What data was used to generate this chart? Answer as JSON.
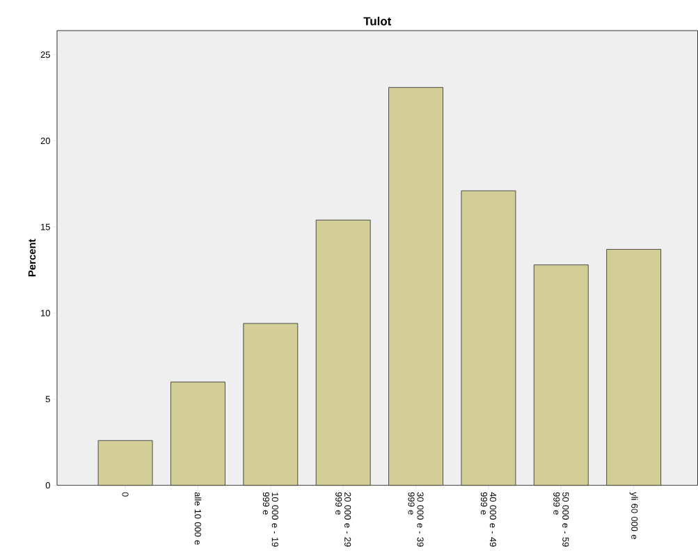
{
  "chart_data": {
    "type": "bar",
    "title": "Tulot",
    "ylabel": "Percent",
    "categories": [
      "0",
      "alle 10 000 e",
      "10 000 e - 19 999 e",
      "20 000 e - 29 999 e",
      "30 000 e - 39 999 e",
      "40 000 e - 49 999 e",
      "50 000 e - 59 999 e",
      "yli 60 000 e"
    ],
    "values": [
      2.6,
      6.0,
      9.4,
      15.4,
      23.1,
      17.1,
      12.8,
      13.7
    ],
    "color": "#d3ce98",
    "ylim": [
      0,
      26.4
    ],
    "yticks": [
      0,
      5,
      10,
      15,
      20,
      25
    ]
  }
}
